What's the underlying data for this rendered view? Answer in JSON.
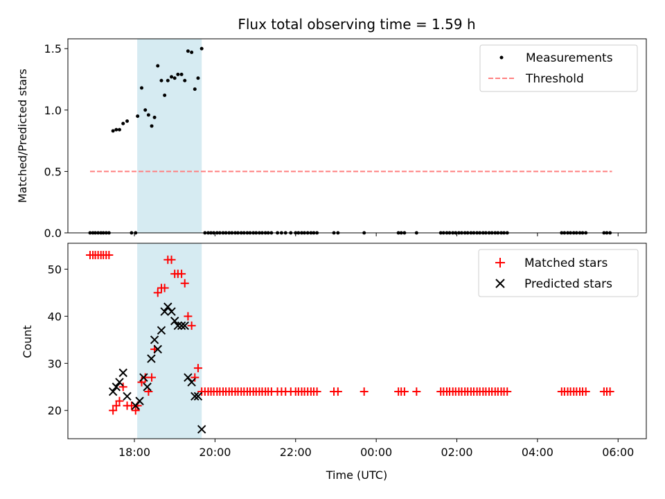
{
  "chart_data": [
    {
      "type": "scatter",
      "title": "Flux total observing time = 1.59 h",
      "xlabel": "",
      "ylabel": "Matched/Predicted stars",
      "xlim": [
        16.35,
        30.7
      ],
      "ylim": [
        0,
        1.58
      ],
      "yticks": [
        0.0,
        0.5,
        1.0,
        1.5
      ],
      "ytick_labels": [
        "0.0",
        "0.5",
        "1.0",
        "1.5"
      ],
      "shaded_region": [
        18.07,
        19.67
      ],
      "threshold": {
        "value": 0.5,
        "x_range": [
          16.9,
          29.85
        ]
      },
      "legend": [
        {
          "label": "Measurements",
          "marker": "dot"
        },
        {
          "label": "Threshold",
          "marker": "dashed-line"
        }
      ],
      "series": [
        {
          "name": "Measurements",
          "x": [
            16.9,
            16.97,
            17.03,
            17.1,
            17.17,
            17.23,
            17.3,
            17.37,
            17.47,
            17.55,
            17.63,
            17.72,
            17.82,
            17.93,
            18.03,
            18.08,
            18.18,
            18.27,
            18.35,
            18.43,
            18.5,
            18.58,
            18.67,
            18.75,
            18.83,
            18.92,
            19.0,
            19.08,
            19.17,
            19.25,
            19.33,
            19.42,
            19.5,
            19.58,
            19.67,
            19.75,
            19.83,
            19.9,
            19.97,
            20.05,
            20.12,
            20.2,
            20.27,
            20.35,
            20.42,
            20.5,
            20.57,
            20.65,
            20.72,
            20.8,
            20.87,
            20.95,
            21.02,
            21.1,
            21.17,
            21.25,
            21.32,
            21.4,
            21.55,
            21.65,
            21.75,
            21.88,
            22.0,
            22.07,
            22.15,
            22.22,
            22.3,
            22.38,
            22.45,
            22.53,
            22.95,
            23.05,
            23.7,
            24.55,
            24.62,
            24.7,
            25.0,
            25.6,
            25.67,
            25.75,
            25.82,
            25.9,
            25.97,
            26.05,
            26.12,
            26.2,
            26.27,
            26.35,
            26.42,
            26.5,
            26.57,
            26.65,
            26.72,
            26.8,
            26.87,
            26.95,
            27.02,
            27.1,
            27.17,
            27.25,
            28.6,
            28.67,
            28.75,
            28.82,
            28.9,
            28.97,
            29.05,
            29.12,
            29.2,
            29.65,
            29.72,
            29.8
          ],
          "y": [
            0,
            0,
            0,
            0,
            0,
            0,
            0,
            0,
            0.83,
            0.84,
            0.84,
            0.89,
            0.91,
            0,
            0,
            0.95,
            1.18,
            1.0,
            0.96,
            0.87,
            0.94,
            1.36,
            1.24,
            1.12,
            1.24,
            1.27,
            1.26,
            1.29,
            1.29,
            1.24,
            1.48,
            1.47,
            1.17,
            1.26,
            1.5,
            0,
            0,
            0,
            0,
            0,
            0,
            0,
            0,
            0,
            0,
            0,
            0,
            0,
            0,
            0,
            0,
            0,
            0,
            0,
            0,
            0,
            0,
            0,
            0,
            0,
            0,
            0,
            0,
            0,
            0,
            0,
            0,
            0,
            0,
            0,
            0,
            0,
            0,
            0,
            0,
            0,
            0,
            0,
            0,
            0,
            0,
            0,
            0,
            0,
            0,
            0,
            0,
            0,
            0,
            0,
            0,
            0,
            0,
            0,
            0,
            0,
            0,
            0,
            0,
            0,
            0,
            0,
            0,
            0,
            0,
            0,
            0,
            0,
            0,
            0,
            0,
            0
          ]
        }
      ]
    },
    {
      "type": "scatter",
      "title": "",
      "xlabel": "Time (UTC)",
      "ylabel": "Count",
      "xlim": [
        16.35,
        30.7
      ],
      "ylim": [
        14,
        55.5
      ],
      "yticks": [
        20,
        30,
        40,
        50
      ],
      "ytick_labels": [
        "20",
        "30",
        "40",
        "50"
      ],
      "xticks": [
        18,
        20,
        22,
        24,
        26,
        28,
        30
      ],
      "xtick_labels": [
        "18:00",
        "20:00",
        "22:00",
        "00:00",
        "02:00",
        "04:00",
        "06:00"
      ],
      "shaded_region": [
        18.07,
        19.67
      ],
      "legend": [
        {
          "label": "Matched stars",
          "marker": "plus"
        },
        {
          "label": "Predicted stars",
          "marker": "x"
        }
      ],
      "series": [
        {
          "name": "Matched stars",
          "x": [
            16.9,
            16.97,
            17.03,
            17.1,
            17.17,
            17.23,
            17.3,
            17.37,
            17.47,
            17.55,
            17.63,
            17.72,
            17.82,
            17.93,
            18.03,
            18.08,
            18.18,
            18.27,
            18.35,
            18.43,
            18.5,
            18.58,
            18.67,
            18.75,
            18.83,
            18.92,
            19.0,
            19.08,
            19.17,
            19.25,
            19.33,
            19.42,
            19.5,
            19.58,
            19.67,
            19.75,
            19.83,
            19.9,
            19.97,
            20.05,
            20.12,
            20.2,
            20.27,
            20.35,
            20.42,
            20.5,
            20.57,
            20.65,
            20.72,
            20.8,
            20.87,
            20.95,
            21.02,
            21.1,
            21.17,
            21.25,
            21.32,
            21.4,
            21.55,
            21.65,
            21.75,
            21.88,
            22.0,
            22.07,
            22.15,
            22.22,
            22.3,
            22.38,
            22.45,
            22.53,
            22.95,
            23.05,
            23.7,
            24.55,
            24.62,
            24.7,
            25.0,
            25.6,
            25.67,
            25.75,
            25.82,
            25.9,
            25.97,
            26.05,
            26.12,
            26.2,
            26.27,
            26.35,
            26.42,
            26.5,
            26.57,
            26.65,
            26.72,
            26.8,
            26.87,
            26.95,
            27.02,
            27.1,
            27.17,
            27.25,
            28.6,
            28.67,
            28.75,
            28.82,
            28.9,
            28.97,
            29.05,
            29.12,
            29.2,
            29.65,
            29.72,
            29.8
          ],
          "y": [
            53,
            53,
            53,
            53,
            53,
            53,
            53,
            53,
            20,
            21,
            22,
            25,
            21,
            21,
            20,
            21,
            26,
            27,
            24,
            27,
            33,
            45,
            46,
            46,
            52,
            52,
            49,
            49,
            49,
            47,
            40,
            38,
            27,
            29,
            24,
            24,
            24,
            24,
            24,
            24,
            24,
            24,
            24,
            24,
            24,
            24,
            24,
            24,
            24,
            24,
            24,
            24,
            24,
            24,
            24,
            24,
            24,
            24,
            24,
            24,
            24,
            24,
            24,
            24,
            24,
            24,
            24,
            24,
            24,
            24,
            24,
            24,
            24,
            24,
            24,
            24,
            24,
            24,
            24,
            24,
            24,
            24,
            24,
            24,
            24,
            24,
            24,
            24,
            24,
            24,
            24,
            24,
            24,
            24,
            24,
            24,
            24,
            24,
            24,
            24,
            24,
            24,
            24,
            24,
            24,
            24,
            24,
            24,
            24,
            24,
            24,
            24
          ]
        },
        {
          "name": "Predicted stars",
          "x": [
            17.47,
            17.55,
            17.63,
            17.72,
            17.82,
            18.03,
            18.13,
            18.23,
            18.32,
            18.42,
            18.5,
            18.58,
            18.67,
            18.75,
            18.83,
            18.92,
            19.0,
            19.08,
            19.17,
            19.25,
            19.33,
            19.42,
            19.5,
            19.58,
            19.67
          ],
          "y": [
            24,
            25,
            26,
            28,
            23,
            21,
            22,
            27,
            25,
            31,
            35,
            33,
            37,
            41,
            42,
            41,
            39,
            38,
            38,
            38,
            27,
            26,
            23,
            23,
            16
          ]
        }
      ]
    }
  ]
}
